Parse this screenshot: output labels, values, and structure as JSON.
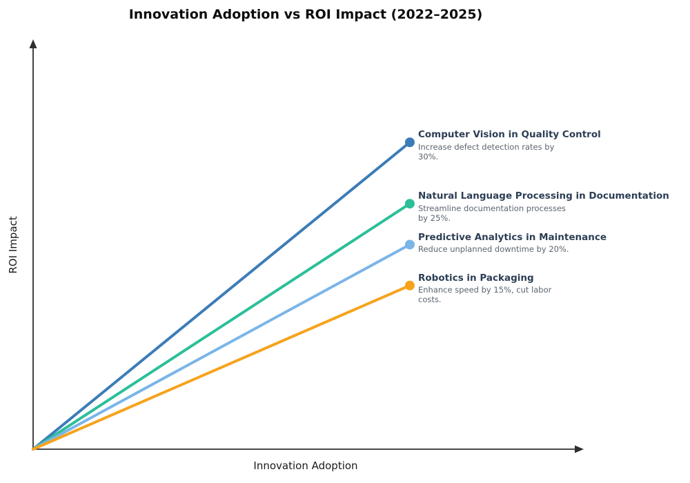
{
  "chart_data": {
    "type": "line",
    "title": "Innovation Adoption vs ROI Impact (2022–2025)",
    "xlabel": "Innovation Adoption",
    "ylabel": "ROI Impact",
    "axis_color": "#2e2e2e",
    "axes": {
      "ticks": false,
      "arrows": true,
      "grid": false
    },
    "note": "Four trend lines radiate from the origin (0,0) to a shared x endpoint; endpoint height encodes ROI impact.",
    "series": [
      {
        "name": "Computer Vision in Quality Control",
        "description": "Increase defect detection rates by\n30%.",
        "roi_percent": 30,
        "color": "#3c7cb8",
        "end_frac": {
          "x": 0.685,
          "y": 0.75
        }
      },
      {
        "name": "Natural Language Processing in Documentation",
        "description": "Streamline documentation processes\nby 25%.",
        "roi_percent": 25,
        "color": "#2bbf98",
        "end_frac": {
          "x": 0.685,
          "y": 0.6
        }
      },
      {
        "name": "Predictive Analytics in Maintenance",
        "description": "Reduce unplanned downtime by 20%.",
        "roi_percent": 20,
        "color": "#7ab5e8",
        "end_frac": {
          "x": 0.685,
          "y": 0.5
        }
      },
      {
        "name": "Robotics in Packaging",
        "description": "Enhance speed by 15%, cut labor\ncosts.",
        "roi_percent": 15,
        "color": "#f6a31c",
        "end_frac": {
          "x": 0.685,
          "y": 0.4
        }
      }
    ]
  }
}
